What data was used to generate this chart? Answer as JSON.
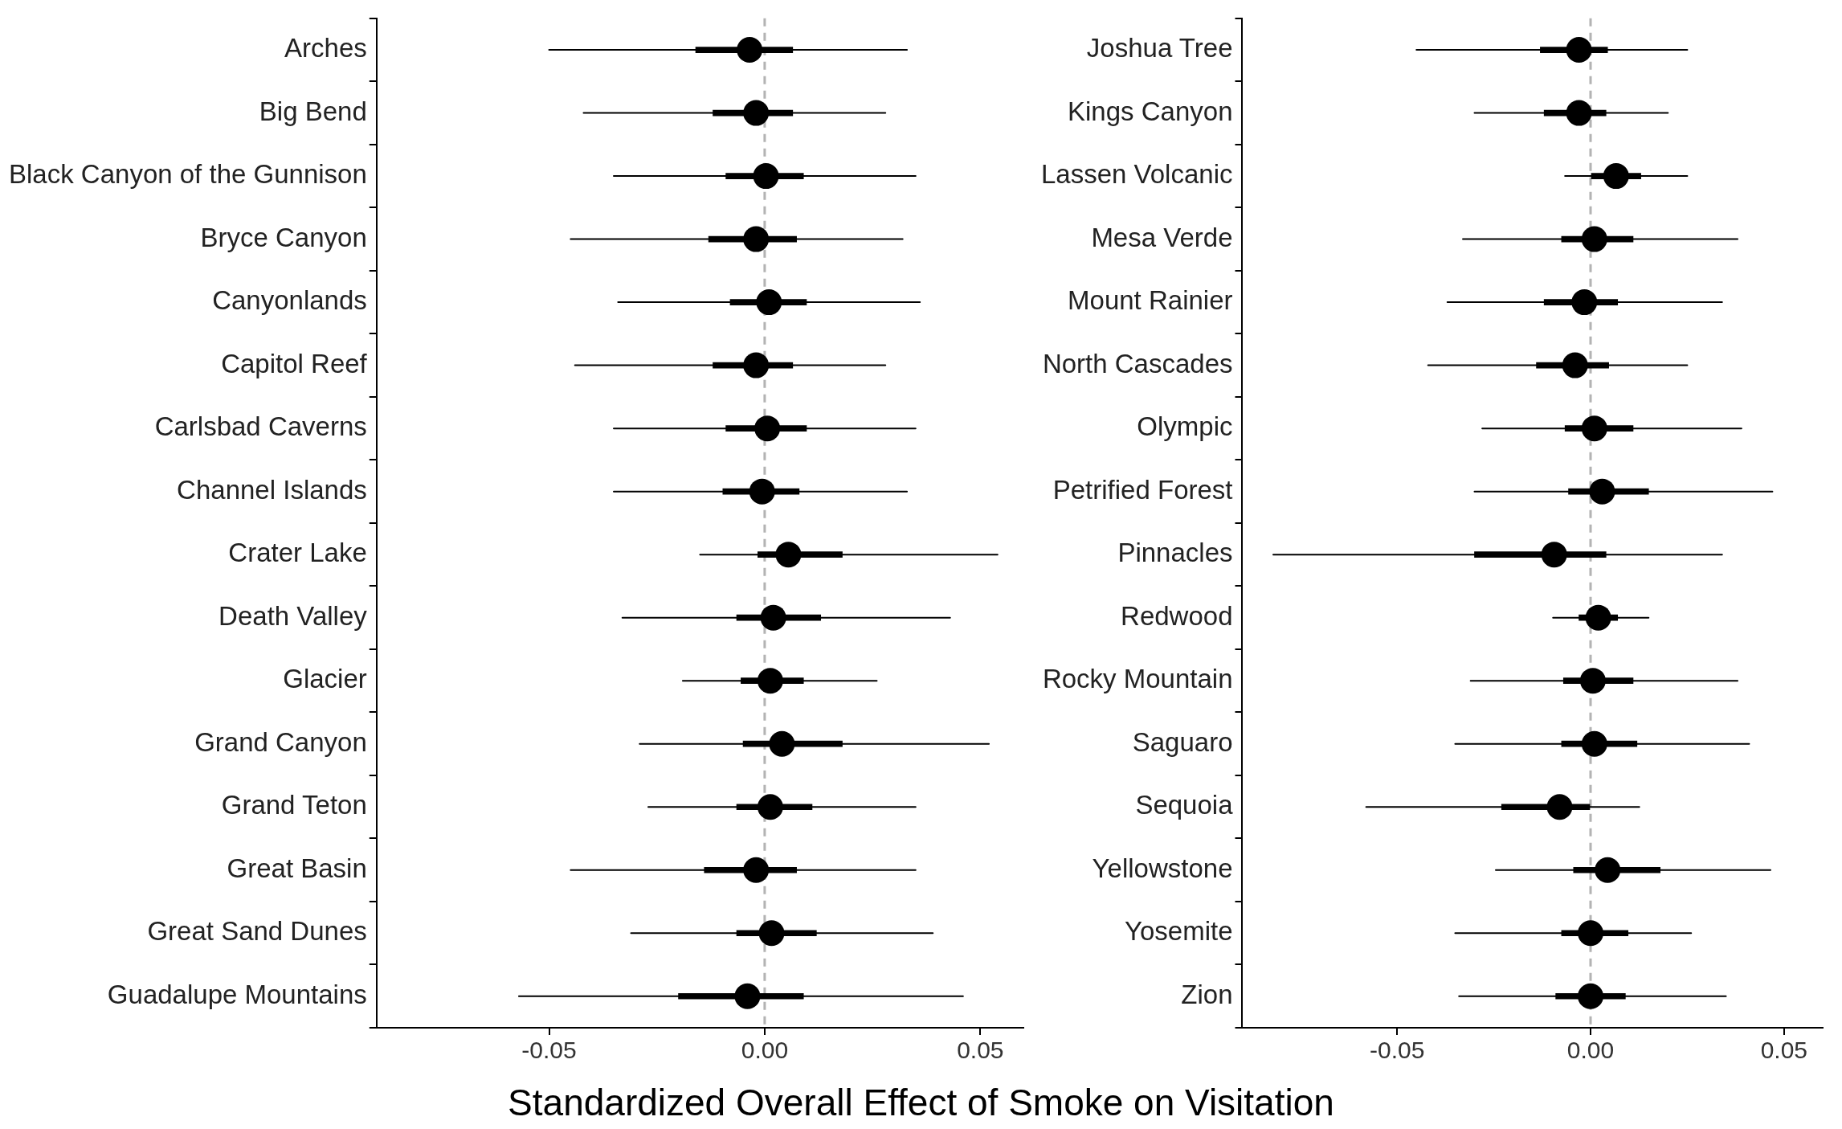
{
  "chart_data": [
    {
      "type": "bar",
      "orientation": "horizontal",
      "xlabel": "Standardized Overall Effect of Smoke on Visitation",
      "categories": [
        "Arches",
        "Big Bend",
        "Black Canyon of the Gunnison",
        "Bryce Canyon",
        "Canyonlands",
        "Capitol Reef",
        "Carlsbad Caverns",
        "Channel Islands",
        "Crater Lake",
        "Death Valley",
        "Glacier",
        "Grand Canyon",
        "Grand Teton",
        "Great Basin",
        "Great Sand Dunes",
        "Guadalupe Mountains"
      ],
      "xlim": [
        -0.09,
        0.06
      ],
      "xticks": [
        {
          "value": -0.05,
          "label": "-0.05"
        },
        {
          "value": 0,
          "label": "0.00"
        },
        {
          "value": 0.05,
          "label": "0.05"
        }
      ],
      "legend": false,
      "marker": "circle",
      "ref_lines": [
        {
          "axis": "x",
          "value": 0,
          "color": "#b3b3b3",
          "line_style": "dashed"
        }
      ],
      "series": [
        {
          "color": "#000000",
          "base": [
            -0.016,
            -0.012,
            -0.009,
            -0.013,
            -0.008,
            -0.012,
            -0.009,
            -0.0097,
            -0.0016,
            -0.0065,
            -0.0055,
            -0.005,
            -0.0065,
            -0.014,
            -0.0065,
            -0.02
          ],
          "values": [
            0.0225,
            0.0185,
            0.018,
            0.0204,
            0.0177,
            0.0185,
            0.0187,
            0.0177,
            0.0196,
            0.0195,
            0.0145,
            0.023,
            0.0175,
            0.0214,
            0.0185,
            0.029
          ]
        },
        {
          "type": "scatter",
          "color": "#000000",
          "values": [
            -0.0035,
            -0.002,
            0.0003,
            -0.002,
            0.001,
            -0.002,
            0.0006,
            -0.0006,
            0.0055,
            0.002,
            0.0013,
            0.004,
            0.0013,
            -0.002,
            0.0016,
            -0.004
          ],
          "errors": [
            [
              -0.05,
              0.033
            ],
            [
              -0.042,
              0.028
            ],
            [
              -0.035,
              0.035
            ],
            [
              -0.045,
              0.032
            ],
            [
              -0.034,
              0.036
            ],
            [
              -0.044,
              0.028
            ],
            [
              -0.035,
              0.035
            ],
            [
              -0.035,
              0.033
            ],
            [
              -0.015,
              0.054
            ],
            [
              -0.033,
              0.043
            ],
            [
              -0.019,
              0.026
            ],
            [
              -0.029,
              0.052
            ],
            [
              -0.027,
              0.035
            ],
            [
              -0.045,
              0.035
            ],
            [
              -0.031,
              0.039
            ],
            [
              -0.057,
              0.046
            ]
          ]
        }
      ]
    },
    {
      "type": "bar",
      "orientation": "horizontal",
      "categories": [
        "Joshua Tree",
        "Kings Canyon",
        "Lassen Volcanic",
        "Mesa Verde",
        "Mount Rainier",
        "North Cascades",
        "Olympic",
        "Petrified Forest",
        "Pinnacles",
        "Redwood",
        "Rocky Mountain",
        "Saguaro",
        "Sequoia",
        "Yellowstone",
        "Yosemite",
        "Zion"
      ],
      "xlim": [
        -0.09,
        0.06
      ],
      "xticks": [
        {
          "value": -0.05,
          "label": "-0.05"
        },
        {
          "value": 0,
          "label": "0.00"
        },
        {
          "value": 0.05,
          "label": "0.05"
        }
      ],
      "legend": false,
      "marker": "circle",
      "ref_lines": [
        {
          "axis": "x",
          "value": 0,
          "color": "#b3b3b3",
          "line_style": "dashed"
        }
      ],
      "series": [
        {
          "color": "#000000",
          "base": [
            -0.013,
            -0.012,
            0,
            -0.0075,
            -0.012,
            -0.014,
            -0.0066,
            -0.0057,
            -0.03,
            -0.003,
            -0.007,
            -0.0075,
            -0.023,
            -0.0044,
            -0.0075,
            -0.009
          ],
          "values": [
            0.0174,
            0.016,
            0.013,
            0.0185,
            0.019,
            0.0187,
            0.0176,
            0.0207,
            0.034,
            0.01,
            0.018,
            0.0195,
            0.023,
            0.0224,
            0.0172,
            0.018
          ]
        },
        {
          "type": "scatter",
          "color": "#000000",
          "values": [
            -0.003,
            -0.003,
            0.0066,
            0.001,
            -0.0016,
            -0.004,
            0.001,
            0.003,
            -0.0094,
            0.002,
            0.0006,
            0.001,
            -0.008,
            0.0044,
            0,
            0
          ],
          "errors": [
            [
              -0.045,
              0.025
            ],
            [
              -0.03,
              0.02
            ],
            [
              -0.0066,
              0.025
            ],
            [
              -0.033,
              0.038
            ],
            [
              -0.037,
              0.034
            ],
            [
              -0.042,
              0.025
            ],
            [
              -0.028,
              0.039
            ],
            [
              -0.03,
              0.047
            ],
            [
              -0.082,
              0.034
            ],
            [
              -0.0097,
              0.015
            ],
            [
              -0.031,
              0.038
            ],
            [
              -0.035,
              0.041
            ],
            [
              -0.058,
              0.0126
            ],
            [
              -0.0245,
              0.0465
            ],
            [
              -0.035,
              0.026
            ],
            [
              -0.034,
              0.035
            ]
          ]
        }
      ]
    }
  ]
}
